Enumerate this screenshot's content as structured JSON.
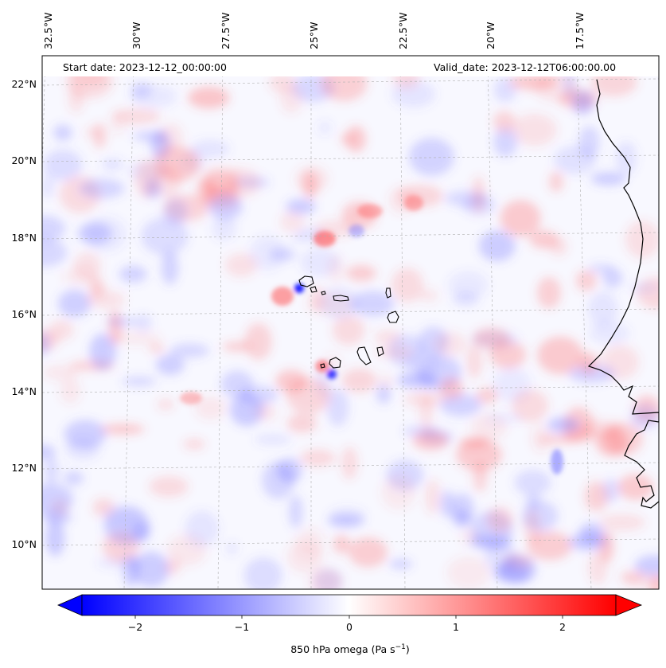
{
  "map": {
    "start_date": "Start date: 2023-12-12_00:00:00",
    "valid_date": "Valid_date: 2023-12-12T06:00:00.00",
    "lon_labels": [
      "32.5°W",
      "30°W",
      "27.5°W",
      "25°W",
      "22.5°W",
      "20°W",
      "17.5°W"
    ],
    "lat_labels": [
      "22°N",
      "20°N",
      "18°N",
      "16°N",
      "14°N",
      "12°N",
      "10°N"
    ],
    "field": "850 hPa omega",
    "colormap": "bwr",
    "colors": {
      "negative": "#0000ff",
      "neutral": "#ffffff",
      "positive": "#ff0000",
      "coast": "#000000",
      "grid": "#b0b0b0"
    }
  },
  "colorbar": {
    "ticks": [
      "−2",
      "−1",
      "0",
      "1",
      "2"
    ],
    "label_prefix": "850 hPa omega (Pa s",
    "label_sup": "−1",
    "label_suffix": ")",
    "range": [
      -2.5,
      2.5
    ],
    "extend": "both"
  }
}
